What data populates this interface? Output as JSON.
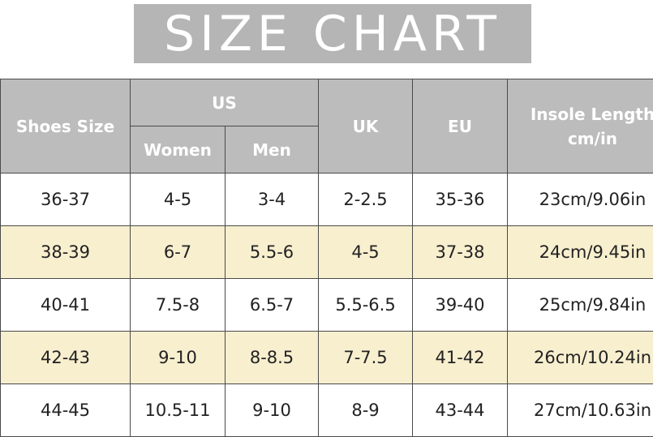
{
  "title": "SIZE CHART",
  "table": {
    "header": {
      "shoes_size": "Shoes Size",
      "us": "US",
      "women": "Women",
      "men": "Men",
      "uk": "UK",
      "eu": "EU",
      "insole": "Insole Length cm/in"
    },
    "rows": [
      [
        "36-37",
        "4-5",
        "3-4",
        "2-2.5",
        "35-36",
        "23cm/9.06in"
      ],
      [
        "38-39",
        "6-7",
        "5.5-6",
        "4-5",
        "37-38",
        "24cm/9.45in"
      ],
      [
        "40-41",
        "7.5-8",
        "6.5-7",
        "5.5-6.5",
        "39-40",
        "25cm/9.84in"
      ],
      [
        "42-43",
        "9-10",
        "8-8.5",
        "7-7.5",
        "41-42",
        "26cm/10.24in"
      ],
      [
        "44-45",
        "10.5-11",
        "9-10",
        "8-9",
        "43-44",
        "27cm/10.63in"
      ]
    ]
  }
}
